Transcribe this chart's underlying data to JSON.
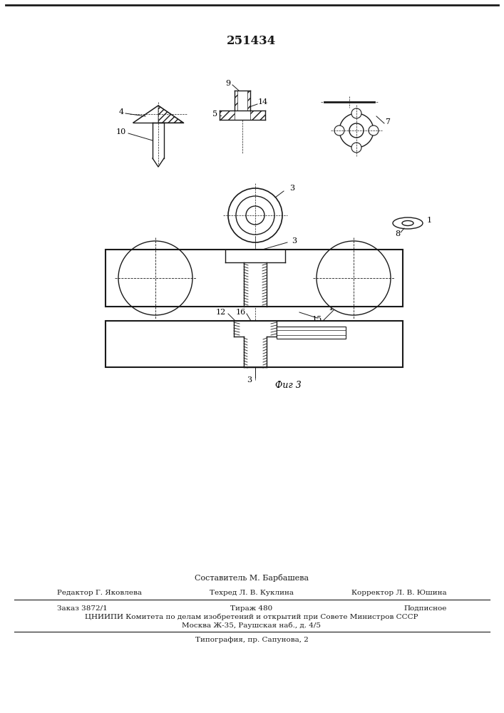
{
  "title": "251434",
  "bg_color": "#ffffff",
  "lc": "#1a1a1a",
  "fig_label": "Фиг 3",
  "footer_composer": "Составитель М. Барбашева",
  "footer_editor": "Редактор Г. Яковлева",
  "footer_tech": "Техред Л. В. Куклина",
  "footer_corr": "Корректор Л. В. Юшина",
  "footer_order": "Заказ 3872/1",
  "footer_tirazh": "Тираж 480",
  "footer_podp": "Подписное",
  "footer_cniipи": "ЦНИИПИ Комитета по делам изобретений и открытий при Совете Министров СССР",
  "footer_moscow": "Москва Ж-35, Раушская наб., д. 4/5",
  "footer_typo": "Типография, пр. Сапунова, 2"
}
